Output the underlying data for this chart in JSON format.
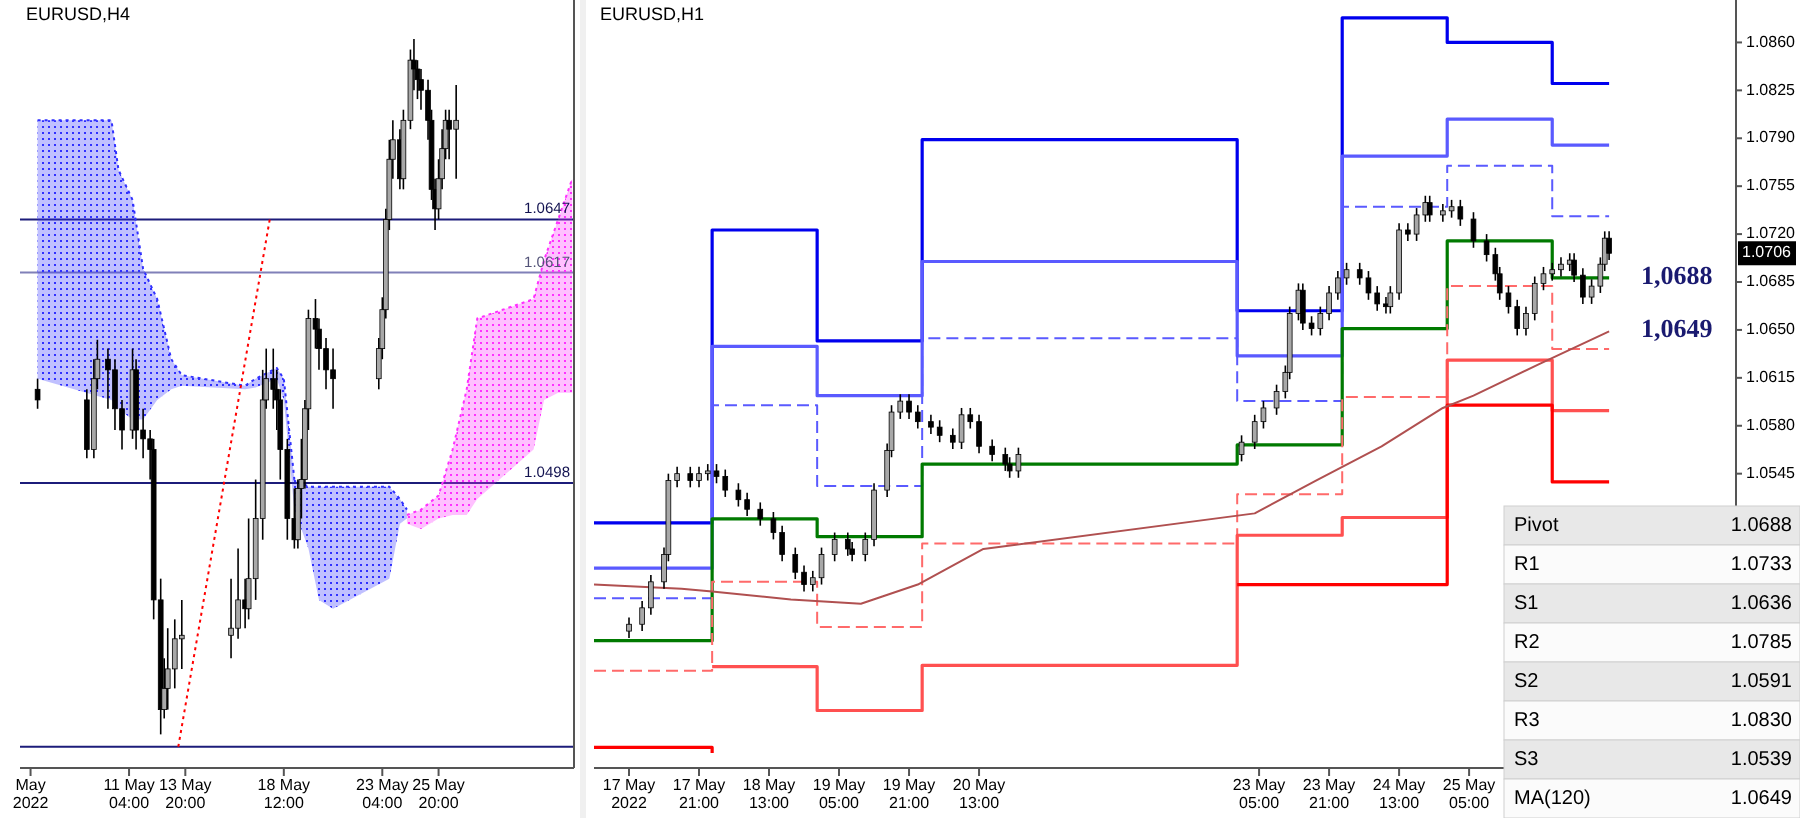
{
  "chart_data": [
    {
      "type": "candlestick",
      "title": "EURUSD,H4",
      "xlim": [
        "2022-05-06T00:00",
        "2022-06-01T06:00"
      ],
      "ylim": [
        1.0337,
        1.0771
      ],
      "tick_labels": "x",
      "xticks": [
        {
          "value": "2022-05-06T12:00",
          "label": "May 2022"
        },
        {
          "value": "2022-05-11T04:00",
          "label": "11 May 04:00"
        },
        {
          "value": "2022-05-13T20:00",
          "label": "13 May 20:00"
        },
        {
          "value": "2022-05-18T12:00",
          "label": "18 May 12:00"
        },
        {
          "value": "2022-05-23T04:00",
          "label": "23 May 04:00"
        },
        {
          "value": "2022-05-25T20:00",
          "label": "25 May 20:00"
        }
      ],
      "x": [
        "2022-05-06T20:00",
        "2022-05-09T04:00",
        "2022-05-09T12:00",
        "2022-05-09T16:00",
        "2022-05-10T04:00",
        "2022-05-10T12:00",
        "2022-05-10T20:00",
        "2022-05-11T08:00",
        "2022-05-11T12:00",
        "2022-05-11T20:00",
        "2022-05-12T04:00",
        "2022-05-12T08:00",
        "2022-05-12T16:00",
        "2022-05-12T20:00",
        "2022-05-13T00:00",
        "2022-05-13T08:00",
        "2022-05-13T16:00",
        "2022-05-16T00:00",
        "2022-05-16T08:00",
        "2022-05-16T16:00",
        "2022-05-16T20:00",
        "2022-05-17T04:00",
        "2022-05-17T12:00",
        "2022-05-17T16:00",
        "2022-05-18T00:00",
        "2022-05-18T04:00",
        "2022-05-18T08:00",
        "2022-05-18T16:00",
        "2022-05-19T00:00",
        "2022-05-19T04:00",
        "2022-05-19T08:00",
        "2022-05-19T12:00",
        "2022-05-19T16:00",
        "2022-05-20T00:00",
        "2022-05-20T04:00",
        "2022-05-20T12:00",
        "2022-05-20T20:00",
        "2022-05-23T00:00",
        "2022-05-23T04:00",
        "2022-05-23T08:00",
        "2022-05-23T12:00",
        "2022-05-23T16:00",
        "2022-05-24T00:00",
        "2022-05-24T04:00",
        "2022-05-24T12:00",
        "2022-05-24T16:00",
        "2022-05-24T20:00",
        "2022-05-25T00:00",
        "2022-05-25T08:00",
        "2022-05-25T12:00",
        "2022-05-25T16:00",
        "2022-05-25T20:00",
        "2022-05-26T00:00",
        "2022-05-26T04:00",
        "2022-05-26T08:00",
        "2022-05-26T16:00"
      ],
      "ohlc": [
        [
          1.0551,
          1.0557,
          1.054,
          1.0545
        ],
        [
          1.0545,
          1.0551,
          1.0512,
          1.0517
        ],
        [
          1.0517,
          1.0568,
          1.0512,
          1.0557
        ],
        [
          1.0557,
          1.0579,
          1.0551,
          1.0568
        ],
        [
          1.0568,
          1.0574,
          1.054,
          1.0562
        ],
        [
          1.0562,
          1.0568,
          1.0528,
          1.054
        ],
        [
          1.054,
          1.0545,
          1.0517,
          1.0528
        ],
        [
          1.0528,
          1.0574,
          1.0523,
          1.0562
        ],
        [
          1.0562,
          1.0568,
          1.0517,
          1.0528
        ],
        [
          1.0528,
          1.054,
          1.0512,
          1.0523
        ],
        [
          1.0523,
          1.0528,
          1.05,
          1.0517
        ],
        [
          1.0517,
          1.0523,
          1.0421,
          1.0432
        ],
        [
          1.0432,
          1.0444,
          1.0356,
          1.037
        ],
        [
          1.037,
          1.0399,
          1.0365,
          1.0382
        ],
        [
          1.0382,
          1.0416,
          1.037,
          1.0393
        ],
        [
          1.0393,
          1.0421,
          1.0382,
          1.041
        ],
        [
          1.041,
          1.0432,
          1.0393,
          1.0412
        ],
        [
          1.0412,
          1.0444,
          1.0399,
          1.0416
        ],
        [
          1.0416,
          1.0461,
          1.041,
          1.0432
        ],
        [
          1.0432,
          1.0444,
          1.0416,
          1.0427
        ],
        [
          1.0427,
          1.0478,
          1.0421,
          1.0444
        ],
        [
          1.0444,
          1.05,
          1.0432,
          1.0478
        ],
        [
          1.0478,
          1.0562,
          1.0466,
          1.0545
        ],
        [
          1.0545,
          1.0574,
          1.054,
          1.0557
        ],
        [
          1.0557,
          1.0574,
          1.054,
          1.0551
        ],
        [
          1.0551,
          1.0562,
          1.0528,
          1.0545
        ],
        [
          1.0545,
          1.0551,
          1.05,
          1.0517
        ],
        [
          1.0517,
          1.0523,
          1.0466,
          1.0478
        ],
        [
          1.0478,
          1.0495,
          1.0461,
          1.0466
        ],
        [
          1.0466,
          1.05,
          1.0461,
          1.0495
        ],
        [
          1.0495,
          1.0523,
          1.0478,
          1.05
        ],
        [
          1.05,
          1.0545,
          1.0495,
          1.054
        ],
        [
          1.054,
          1.0596,
          1.0528,
          1.0591
        ],
        [
          1.0591,
          1.0602,
          1.0574,
          1.0585
        ],
        [
          1.0585,
          1.0591,
          1.0562,
          1.0574
        ],
        [
          1.0574,
          1.058,
          1.0551,
          1.0562
        ],
        [
          1.0562,
          1.0574,
          1.054,
          1.0557
        ],
        [
          1.0557,
          1.058,
          1.0551,
          1.0574
        ],
        [
          1.0574,
          1.0603,
          1.0568,
          1.0596
        ],
        [
          1.0596,
          1.0653,
          1.0591,
          1.0647
        ],
        [
          1.0647,
          1.0692,
          1.0641,
          1.0681
        ],
        [
          1.0681,
          1.0703,
          1.067,
          1.0692
        ],
        [
          1.0692,
          1.0698,
          1.0664,
          1.067
        ],
        [
          1.067,
          1.0709,
          1.0664,
          1.0703
        ],
        [
          1.0703,
          1.0743,
          1.0698,
          1.0737
        ],
        [
          1.0737,
          1.0749,
          1.072,
          1.0732
        ],
        [
          1.0732,
          1.0737,
          1.0715,
          1.0726
        ],
        [
          1.0726,
          1.0732,
          1.0709,
          1.072
        ],
        [
          1.072,
          1.0726,
          1.0692,
          1.0703
        ],
        [
          1.0703,
          1.0709,
          1.0658,
          1.0664
        ],
        [
          1.0664,
          1.067,
          1.0641,
          1.0653
        ],
        [
          1.0653,
          1.0681,
          1.0647,
          1.067
        ],
        [
          1.067,
          1.0698,
          1.0664,
          1.0687
        ],
        [
          1.0687,
          1.0709,
          1.0681,
          1.0703
        ],
        [
          1.0703,
          1.0709,
          1.0681,
          1.0698
        ],
        [
          1.0698,
          1.0723,
          1.067,
          1.0703
        ]
      ],
      "ref_lines": [
        {
          "axis": "y",
          "value": 1.0647,
          "label": "1.0647",
          "color": "#1c1c7a"
        },
        {
          "axis": "y",
          "value": 1.0617,
          "label": "1.0617",
          "color": "#8080b8"
        },
        {
          "axis": "y",
          "value": 1.0498,
          "label": "1.0498",
          "color": "#1c1c7a"
        },
        {
          "axis": "y",
          "value": 1.0349,
          "color": "#1c1c7a"
        }
      ],
      "series": [
        {
          "type": "line",
          "color": "#3030ff",
          "line_style": "dotted",
          "x": [
            "2022-05-06T20:00",
            "2022-05-10T08:00",
            "2022-05-10T16:00",
            "2022-05-11T08:00",
            "2022-05-11T20:00",
            "2022-05-12T12:00",
            "2022-05-13T04:00",
            "2022-05-13T16:00",
            "2022-05-16T16:00",
            "2022-05-17T04:00",
            "2022-05-18T04:00",
            "2022-05-18T12:00",
            "2022-05-19T00:00",
            "2022-05-19T16:00",
            "2022-05-20T04:00",
            "2022-05-20T20:00",
            "2022-05-23T12:00",
            "2022-05-24T00:00",
            "2022-05-24T08:00"
          ],
          "values": [
            1.0703,
            1.0703,
            1.0675,
            1.0658,
            1.0619,
            1.0602,
            1.0568,
            1.0559,
            1.0553,
            1.0557,
            1.0563,
            1.0557,
            1.05,
            1.0496,
            1.0496,
            1.0496,
            1.0496,
            1.0489,
            1.0483
          ],
          "upper": [
            1.0703,
            1.0703,
            1.0675,
            1.0658,
            1.0619,
            1.0602,
            1.0568,
            1.0559,
            1.0553,
            1.0557,
            1.0563,
            1.0557,
            1.05,
            1.0496,
            1.0496,
            1.0496,
            1.0496,
            1.0489,
            1.0483
          ],
          "lower": [
            1.0557,
            1.0545,
            1.054,
            1.0534,
            1.0534,
            1.0545,
            1.0551,
            1.0553,
            1.0551,
            1.0552,
            1.0557,
            1.0545,
            1.0483,
            1.0461,
            1.0432,
            1.0427,
            1.0444,
            1.0475,
            1.0478
          ]
        },
        {
          "type": "line",
          "color": "#ff30ff",
          "line_style": "dotted",
          "x": [
            "2022-05-24T08:00",
            "2022-05-25T00:00",
            "2022-05-25T20:00",
            "2022-05-26T12:00",
            "2022-05-27T04:00",
            "2022-05-27T16:00",
            "2022-05-30T08:00",
            "2022-05-30T20:00",
            "2022-05-31T12:00",
            "2022-06-01T04:00"
          ],
          "values": [
            1.048,
            1.0483,
            1.0491,
            1.0517,
            1.0551,
            1.0591,
            1.0602,
            1.0624,
            1.0647,
            1.067
          ],
          "upper": [
            1.048,
            1.0483,
            1.0491,
            1.0517,
            1.0551,
            1.0591,
            1.0602,
            1.0624,
            1.0647,
            1.067
          ],
          "lower": [
            1.0475,
            1.0472,
            1.0478,
            1.048,
            1.048,
            1.0489,
            1.0517,
            1.0545,
            1.0549,
            1.0549
          ]
        },
        {
          "type": "line",
          "color": "#ff0000",
          "line_style": "dotted",
          "x": [
            "2022-05-13T12:00",
            "2022-05-17T20:00"
          ],
          "values": [
            1.0349,
            1.0647
          ]
        }
      ]
    },
    {
      "type": "candlestick",
      "title": "EURUSD,H1",
      "xlim": [
        "2022-05-16T21:00",
        "2022-05-27T18:00"
      ],
      "ylim": [
        1.033,
        1.0891
      ],
      "xticks": [
        {
          "value": "2022-05-17T05:00",
          "label": "17 May 2022"
        },
        {
          "value": "2022-05-17T21:00",
          "label": "17 May 21:00"
        },
        {
          "value": "2022-05-18T13:00",
          "label": "18 May 13:00"
        },
        {
          "value": "2022-05-19T05:00",
          "label": "19 May 05:00"
        },
        {
          "value": "2022-05-19T21:00",
          "label": "19 May 21:00"
        },
        {
          "value": "2022-05-20T13:00",
          "label": "20 May 13:00"
        },
        {
          "value": "2022-05-23T05:00",
          "label": "23 May 05:00"
        },
        {
          "value": "2022-05-23T21:00",
          "label": "23 May 21:00"
        },
        {
          "value": "2022-05-24T13:00",
          "label": "24 May 13:00"
        },
        {
          "value": "2022-05-25T05:00",
          "label": "25 May 05:00"
        }
      ],
      "yticks": [
        1.0545,
        {
          "value": 1.058,
          "label": "1.0580"
        },
        1.0615,
        {
          "value": 1.065,
          "label": "1.0650"
        },
        1.0685,
        {
          "value": 1.072,
          "label": "1.0720"
        },
        1.0755,
        {
          "value": 1.079,
          "label": "1.0790"
        },
        1.0825,
        {
          "value": 1.086,
          "label": "1.0860"
        }
      ],
      "x": [
        "2022-05-17T05:00",
        "2022-05-17T08:00",
        "2022-05-17T10:00",
        "2022-05-17T13:00",
        "2022-05-17T14:00",
        "2022-05-17T16:00",
        "2022-05-17T19:00",
        "2022-05-17T21:00",
        "2022-05-17T23:00",
        "2022-05-18T01:00",
        "2022-05-18T03:00",
        "2022-05-18T06:00",
        "2022-05-18T08:00",
        "2022-05-18T11:00",
        "2022-05-18T14:00",
        "2022-05-18T16:00",
        "2022-05-18T19:00",
        "2022-05-18T21:00",
        "2022-05-18T23:00",
        "2022-05-19T01:00",
        "2022-05-19T04:00",
        "2022-05-19T07:00",
        "2022-05-19T08:00",
        "2022-05-19T11:00",
        "2022-05-19T13:00",
        "2022-05-19T16:00",
        "2022-05-19T17:00",
        "2022-05-19T19:00",
        "2022-05-19T21:00",
        "2022-05-19T23:00",
        "2022-05-20T02:00",
        "2022-05-20T04:00",
        "2022-05-20T07:00",
        "2022-05-20T09:00",
        "2022-05-20T11:00",
        "2022-05-20T13:00",
        "2022-05-20T16:00",
        "2022-05-20T19:00",
        "2022-05-20T20:00",
        "2022-05-20T22:00",
        "2022-05-23T01:00",
        "2022-05-23T04:00",
        "2022-05-23T06:00",
        "2022-05-23T09:00",
        "2022-05-23T11:00",
        "2022-05-23T12:00",
        "2022-05-23T14:00",
        "2022-05-23T15:00",
        "2022-05-23T17:00",
        "2022-05-23T19:00",
        "2022-05-23T21:00",
        "2022-05-23T23:00",
        "2022-05-24T01:00",
        "2022-05-24T04:00",
        "2022-05-24T06:00",
        "2022-05-24T08:00",
        "2022-05-24T10:00",
        "2022-05-24T11:00",
        "2022-05-24T13:00",
        "2022-05-24T15:00",
        "2022-05-24T17:00",
        "2022-05-24T19:00",
        "2022-05-24T20:00",
        "2022-05-24T23:00",
        "2022-05-25T01:00",
        "2022-05-25T03:00",
        "2022-05-25T06:00",
        "2022-05-25T09:00",
        "2022-05-25T11:00",
        "2022-05-25T12:00",
        "2022-05-25T14:00",
        "2022-05-25T16:00",
        "2022-05-25T18:00",
        "2022-05-25T20:00",
        "2022-05-25T22:00",
        "2022-05-26T00:00",
        "2022-05-26T02:00",
        "2022-05-26T04:00",
        "2022-05-26T05:00",
        "2022-05-26T07:00",
        "2022-05-26T09:00",
        "2022-05-26T11:00",
        "2022-05-26T12:00",
        "2022-05-26T13:00"
      ],
      "ohlc": [
        [
          1.043,
          1.044,
          1.0425,
          1.0435
        ],
        [
          1.0435,
          1.0452,
          1.043,
          1.0447
        ],
        [
          1.0447,
          1.0471,
          1.0442,
          1.0466
        ],
        [
          1.0466,
          1.0491,
          1.0461,
          1.0486
        ],
        [
          1.0486,
          1.0545,
          1.0481,
          1.054
        ],
        [
          1.054,
          1.055,
          1.0535,
          1.0545
        ],
        [
          1.0545,
          1.055,
          1.0535,
          1.054
        ],
        [
          1.054,
          1.055,
          1.0535,
          1.0545
        ],
        [
          1.0545,
          1.0552,
          1.054,
          1.0547
        ],
        [
          1.0547,
          1.0552,
          1.0538,
          1.0543
        ],
        [
          1.0543,
          1.0548,
          1.0528,
          1.0533
        ],
        [
          1.0533,
          1.0538,
          1.0521,
          1.0526
        ],
        [
          1.0526,
          1.0531,
          1.0514,
          1.0519
        ],
        [
          1.0519,
          1.0524,
          1.0507,
          1.0512
        ],
        [
          1.0512,
          1.0517,
          1.0497,
          1.0502
        ],
        [
          1.0502,
          1.0507,
          1.0481,
          1.0486
        ],
        [
          1.0486,
          1.0491,
          1.0468,
          1.0473
        ],
        [
          1.0473,
          1.0478,
          1.0459,
          1.0464
        ],
        [
          1.0464,
          1.0474,
          1.0459,
          1.0469
        ],
        [
          1.0469,
          1.0491,
          1.0464,
          1.0486
        ],
        [
          1.0486,
          1.0502,
          1.0481,
          1.0497
        ],
        [
          1.0497,
          1.0502,
          1.0485,
          1.049
        ],
        [
          1.049,
          1.0495,
          1.0481,
          1.0486
        ],
        [
          1.0486,
          1.0502,
          1.0481,
          1.0497
        ],
        [
          1.0497,
          1.0538,
          1.0492,
          1.0533
        ],
        [
          1.0533,
          1.0567,
          1.0528,
          1.0562
        ],
        [
          1.0562,
          1.0595,
          1.0557,
          1.059
        ],
        [
          1.059,
          1.0603,
          1.0585,
          1.0598
        ],
        [
          1.0598,
          1.0603,
          1.0585,
          1.059
        ],
        [
          1.059,
          1.0595,
          1.0578,
          1.0583
        ],
        [
          1.0583,
          1.0588,
          1.0574,
          1.0579
        ],
        [
          1.0579,
          1.0584,
          1.0568,
          1.0573
        ],
        [
          1.0573,
          1.0578,
          1.0563,
          1.0568
        ],
        [
          1.0568,
          1.0593,
          1.0563,
          1.0588
        ],
        [
          1.0588,
          1.0593,
          1.0578,
          1.0583
        ],
        [
          1.0583,
          1.0588,
          1.056,
          1.0565
        ],
        [
          1.0565,
          1.057,
          1.0554,
          1.0559
        ],
        [
          1.0559,
          1.0564,
          1.0547,
          1.0552
        ],
        [
          1.0552,
          1.0557,
          1.0542,
          1.0547
        ],
        [
          1.0547,
          1.0564,
          1.0542,
          1.0559
        ],
        [
          1.0559,
          1.0573,
          1.0554,
          1.0568
        ],
        [
          1.0568,
          1.0588,
          1.0563,
          1.0583
        ],
        [
          1.0583,
          1.0598,
          1.0578,
          1.0593
        ],
        [
          1.0593,
          1.061,
          1.0588,
          1.0605
        ],
        [
          1.0605,
          1.0624,
          1.06,
          1.0619
        ],
        [
          1.0619,
          1.0667,
          1.0614,
          1.0662
        ],
        [
          1.0662,
          1.0684,
          1.0657,
          1.0679
        ],
        [
          1.0679,
          1.0684,
          1.065,
          1.0655
        ],
        [
          1.0655,
          1.066,
          1.0646,
          1.0651
        ],
        [
          1.0651,
          1.0667,
          1.0646,
          1.0662
        ],
        [
          1.0662,
          1.0682,
          1.0657,
          1.0677
        ],
        [
          1.0677,
          1.0693,
          1.0672,
          1.0688
        ],
        [
          1.0688,
          1.0699,
          1.0683,
          1.0694
        ],
        [
          1.0694,
          1.0699,
          1.0683,
          1.0688
        ],
        [
          1.0688,
          1.0693,
          1.0672,
          1.0677
        ],
        [
          1.0677,
          1.0682,
          1.0664,
          1.0669
        ],
        [
          1.0669,
          1.0674,
          1.0662,
          1.0667
        ],
        [
          1.0667,
          1.0682,
          1.0662,
          1.0677
        ],
        [
          1.0677,
          1.0728,
          1.0672,
          1.0723
        ],
        [
          1.0723,
          1.0728,
          1.0715,
          1.072
        ],
        [
          1.072,
          1.0739,
          1.0715,
          1.0734
        ],
        [
          1.0734,
          1.0748,
          1.0729,
          1.0743
        ],
        [
          1.0743,
          1.0748,
          1.0729,
          1.0734
        ],
        [
          1.0734,
          1.0742,
          1.0729,
          1.0737
        ],
        [
          1.0737,
          1.0745,
          1.0732,
          1.074
        ],
        [
          1.074,
          1.0745,
          1.0726,
          1.0731
        ],
        [
          1.0731,
          1.0736,
          1.071,
          1.0715
        ],
        [
          1.0715,
          1.072,
          1.07,
          1.0705
        ],
        [
          1.0705,
          1.071,
          1.0686,
          1.0691
        ],
        [
          1.0691,
          1.0696,
          1.0672,
          1.0677
        ],
        [
          1.0677,
          1.0682,
          1.0662,
          1.0667
        ],
        [
          1.0667,
          1.0672,
          1.0646,
          1.0651
        ],
        [
          1.0651,
          1.0667,
          1.0646,
          1.0662
        ],
        [
          1.0662,
          1.0689,
          1.0657,
          1.0684
        ],
        [
          1.0684,
          1.0696,
          1.0679,
          1.0691
        ],
        [
          1.0691,
          1.0699,
          1.0686,
          1.0694
        ],
        [
          1.0694,
          1.0703,
          1.0689,
          1.0698
        ],
        [
          1.0698,
          1.0706,
          1.0693,
          1.0701
        ],
        [
          1.0701,
          1.0706,
          1.0685,
          1.069
        ],
        [
          1.069,
          1.0695,
          1.0669,
          1.0674
        ],
        [
          1.0674,
          1.0687,
          1.0669,
          1.0682
        ],
        [
          1.0682,
          1.0703,
          1.0677,
          1.0698
        ],
        [
          1.0698,
          1.0722,
          1.0693,
          1.0717
        ],
        [
          1.0717,
          1.0722,
          1.0701,
          1.0706
        ]
      ],
      "series": [
        {
          "type": "step",
          "color": "#0000ee",
          "x": [
            "2022-05-16T21:00",
            "2022-05-18T00:00",
            "2022-05-19T00:00",
            "2022-05-20T00:00",
            "2022-05-23T00:00",
            "2022-05-24T00:00",
            "2022-05-25T00:00",
            "2022-05-26T00:00",
            "2022-05-26T13:00"
          ],
          "values": [
            1.0509,
            1.0723,
            1.0642,
            1.0789,
            1.0664,
            1.0878,
            1.086,
            1.083,
            1.083
          ]
        },
        {
          "type": "step",
          "color": "#5a5aff",
          "x": [
            "2022-05-16T21:00",
            "2022-05-18T00:00",
            "2022-05-19T00:00",
            "2022-05-20T00:00",
            "2022-05-23T00:00",
            "2022-05-24T00:00",
            "2022-05-25T00:00",
            "2022-05-26T00:00",
            "2022-05-26T13:00"
          ],
          "values": [
            1.0476,
            1.0638,
            1.0602,
            1.07,
            1.0631,
            1.0777,
            1.0804,
            1.0785,
            1.0785
          ]
        },
        {
          "type": "step",
          "color": "#5a5aff",
          "line_style": "dashed",
          "x": [
            "2022-05-16T21:00",
            "2022-05-18T00:00",
            "2022-05-19T00:00",
            "2022-05-20T00:00",
            "2022-05-23T00:00",
            "2022-05-24T00:00",
            "2022-05-25T00:00",
            "2022-05-26T00:00",
            "2022-05-26T13:00"
          ],
          "values": [
            1.0454,
            1.0595,
            1.0536,
            1.0644,
            1.0598,
            1.074,
            1.077,
            1.0733,
            1.0733
          ]
        },
        {
          "type": "step",
          "color": "#007a00",
          "x": [
            "2022-05-16T21:00",
            "2022-05-18T00:00",
            "2022-05-19T00:00",
            "2022-05-20T00:00",
            "2022-05-23T00:00",
            "2022-05-24T00:00",
            "2022-05-25T00:00",
            "2022-05-26T00:00",
            "2022-05-26T13:00"
          ],
          "values": [
            1.0423,
            1.0512,
            1.0499,
            1.0552,
            1.0566,
            1.0651,
            1.0715,
            1.0688,
            1.0688
          ]
        },
        {
          "type": "step",
          "color": "#ff6a6a",
          "line_style": "dashed",
          "x": [
            "2022-05-16T21:00",
            "2022-05-18T00:00",
            "2022-05-19T00:00",
            "2022-05-20T00:00",
            "2022-05-23T00:00",
            "2022-05-24T00:00",
            "2022-05-25T00:00",
            "2022-05-26T00:00",
            "2022-05-26T13:00"
          ],
          "values": [
            1.0401,
            1.0466,
            1.0433,
            1.0494,
            1.053,
            1.0601,
            1.0682,
            1.0636,
            1.0636
          ]
        },
        {
          "type": "step",
          "color": "#ff5050",
          "x": [
            "2022-05-18T00:00",
            "2022-05-19T00:00",
            "2022-05-20T00:00",
            "2022-05-23T00:00",
            "2022-05-24T00:00",
            "2022-05-25T00:00",
            "2022-05-26T00:00",
            "2022-05-26T13:00"
          ],
          "values": [
            1.0404,
            1.0372,
            1.0405,
            1.05,
            1.0513,
            1.0628,
            1.0591,
            1.0591
          ]
        },
        {
          "type": "step",
          "color": "#ff0000",
          "x": [
            "2022-05-16T21:00",
            "2022-05-18T00:00",
            "2022-05-19T00:00",
            "2022-05-20T00:00",
            "2022-05-23T00:00",
            "2022-05-24T00:00",
            "2022-05-25T00:00",
            "2022-05-26T00:00",
            "2022-05-26T13:00"
          ],
          "values": [
            1.0345,
            1.0341,
            null,
            null,
            1.0464,
            1.0464,
            1.0595,
            1.0539,
            1.0539
          ]
        },
        {
          "type": "line",
          "color": "#b05050",
          "x": [
            "2022-05-16T21:00",
            "2022-05-17T17:00",
            "2022-05-18T00:00",
            "2022-05-18T18:00",
            "2022-05-19T10:00",
            "2022-05-19T23:00",
            "2022-05-20T14:00",
            "2022-05-23T04:00",
            "2022-05-23T18:00",
            "2022-05-24T09:00",
            "2022-05-24T23:00",
            "2022-05-25T06:00",
            "2022-05-25T21:00",
            "2022-05-26T13:00"
          ],
          "values": [
            1.0464,
            1.0461,
            1.0459,
            1.0453,
            1.045,
            1.0464,
            1.049,
            1.0516,
            1.054,
            1.0565,
            1.0593,
            1.0602,
            1.0625,
            1.0649
          ]
        }
      ],
      "annotations": [
        {
          "text": "1,0688",
          "x": "2022-05-26T13:00",
          "y": 1.0688
        },
        {
          "text": "1,0649",
          "x": "2022-05-26T13:00",
          "y": 1.0649
        },
        "1.0706",
        "Pivot",
        "1.0688",
        "R1",
        "1.0733",
        "S1",
        "1.0636",
        "R2",
        "1.0785",
        "S2",
        "1.0591",
        "R3",
        "1.0830",
        "S3",
        "1.0539",
        "MA(120)",
        "1.0649"
      ]
    }
  ]
}
